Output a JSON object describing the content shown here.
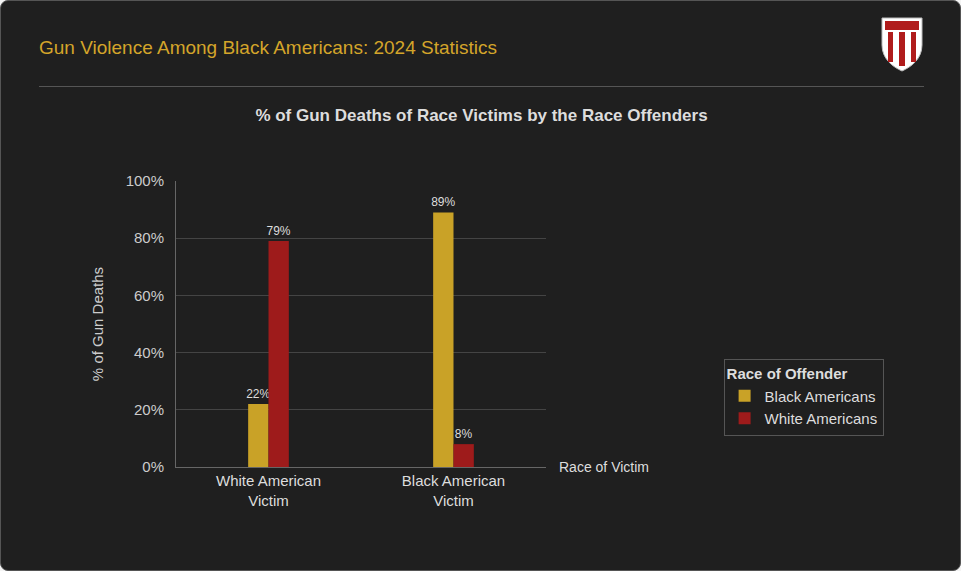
{
  "chart_data": {
    "type": "bar",
    "title": "Gun Violence Among Black Americans: 2024 Statistics",
    "subtitle": "% of Gun Deaths of Race Victims by the Race Offenders",
    "xlabel": "Race of Victim",
    "ylabel": "% of Gun Deaths",
    "legend_title": "Race of Offender",
    "categories": [
      "White American Victim",
      "Black American Victim"
    ],
    "series": [
      {
        "name": "Black Americans",
        "color": "#c9a227",
        "values": [
          22,
          89
        ],
        "value_labels": [
          "22%",
          "89%"
        ]
      },
      {
        "name": "White Americans",
        "color": "#9e1b1b",
        "values": [
          79,
          8
        ],
        "value_labels": [
          "79%",
          "8%"
        ]
      }
    ],
    "ylim": [
      0,
      100
    ],
    "yticks": [
      {
        "value": 0,
        "label": "0%"
      },
      {
        "value": 20,
        "label": "20%"
      },
      {
        "value": 40,
        "label": "40%"
      },
      {
        "value": 60,
        "label": "60%"
      },
      {
        "value": 80,
        "label": "80%"
      },
      {
        "value": 100,
        "label": "100%"
      }
    ],
    "grid": true,
    "legend": "right",
    "data_labels": true
  }
}
